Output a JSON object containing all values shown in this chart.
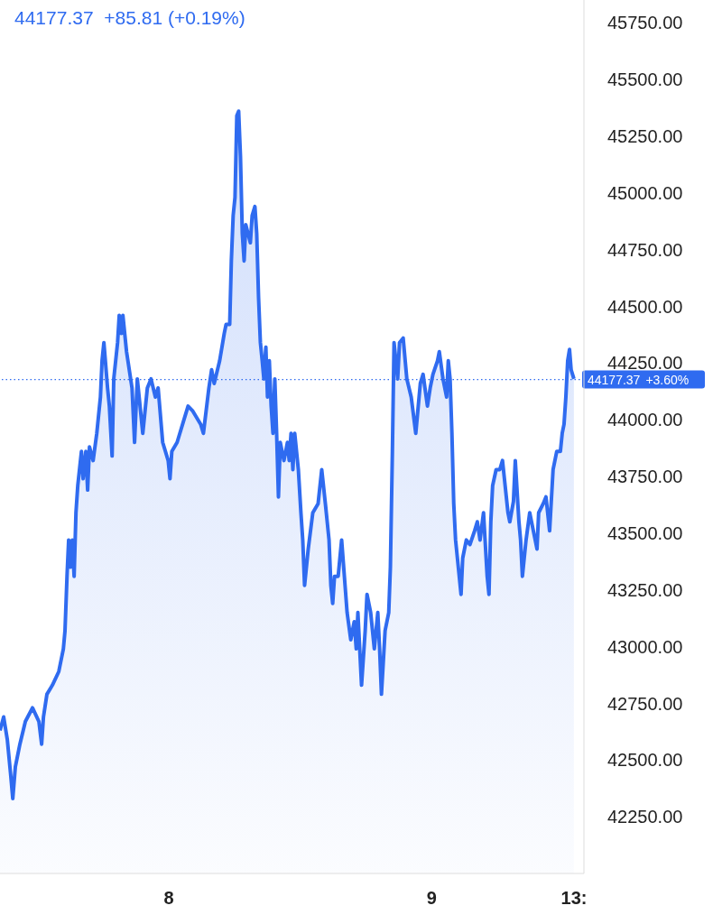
{
  "chart_data": {
    "type": "area",
    "annotations": [
      "44177.37  +85.81 (+0.19%)"
    ],
    "x": [
      "--01-07T08:36",
      "--01-07T08:56",
      "--01-07T09:16",
      "--01-07T09:35",
      "--01-07T09:46",
      "--01-07T10:00",
      "--01-07T10:25",
      "--01-07T10:55",
      "--01-07T11:34",
      "--01-07T12:09",
      "--01-07T12:24",
      "--01-07T12:34",
      "--01-07T12:53",
      "--01-07T13:23",
      "--01-07T13:58",
      "--01-07T14:23",
      "--01-07T14:32",
      "--01-07T14:43",
      "--01-07T14:52",
      "--01-07T15:02",
      "--01-07T15:12",
      "--01-07T15:22",
      "--01-07T15:32",
      "--01-07T15:42",
      "--01-07T16:02",
      "--01-07T16:11",
      "--01-07T16:26",
      "--01-07T16:36",
      "--01-07T16:46",
      "--01-07T17:06",
      "--01-07T17:26",
      "--01-07T17:46",
      "--01-07T17:55",
      "--01-07T18:05",
      "--01-07T18:25",
      "--01-07T18:35",
      "--01-07T18:50",
      "--01-07T18:59",
      "--01-07T19:20",
      "--01-07T19:29",
      "--01-07T19:40",
      "--01-07T19:49",
      "--01-07T20:09",
      "--01-07T20:39",
      "--01-07T20:53",
      "--01-07T21:08",
      "--01-07T21:38",
      "--01-07T22:03",
      "--01-07T22:23",
      "--01-07T22:47",
      "--01-07T23:02",
      "--01-07T23:27",
      "--01-07T23:57",
      "--01-08T00:07",
      "--01-08T00:17",
      "--01-08T00:46",
      "--01-08T01:16",
      "--01-08T01:46",
      "--01-08T02:10",
      "--01-08T02:55",
      "--01-08T03:10",
      "--01-08T03:40",
      "--01-08T03:55",
      "--01-08T04:09",
      "--01-08T04:39",
      "--01-08T05:04",
      "--01-08T05:14",
      "--01-08T05:34",
      "--01-08T05:43",
      "--01-08T05:53",
      "--01-08T06:03",
      "--01-08T06:13",
      "--01-08T06:23",
      "--01-08T06:33",
      "--01-08T06:43",
      "--01-08T06:53",
      "--01-08T07:02",
      "--01-08T07:27",
      "--01-08T07:37",
      "--01-08T07:52",
      "--01-08T08:02",
      "--01-08T08:12",
      "--01-08T08:22",
      "--01-08T08:32",
      "--01-08T08:41",
      "--01-08T08:52",
      "--01-08T09:01",
      "--01-08T09:11",
      "--01-08T09:21",
      "--01-08T09:31",
      "--01-08T09:41",
      "--01-08T09:51",
      "--01-08T10:01",
      "--01-08T10:11",
      "--01-08T10:31",
      "--01-08T10:50",
      "--01-08T11:00",
      "--01-08T11:10",
      "--01-08T11:20",
      "--01-08T11:30",
      "--01-08T11:50",
      "--01-08T12:04",
      "--01-08T12:14",
      "--01-08T12:24",
      "--01-08T12:44",
      "--01-08T13:09",
      "--01-08T13:38",
      "--01-08T13:58",
      "--01-08T14:18",
      "--01-08T14:38",
      "--01-08T14:48",
      "--01-08T14:58",
      "--01-08T15:08",
      "--01-08T15:28",
      "--01-08T15:47",
      "--01-08T16:17",
      "--01-08T16:37",
      "--01-08T16:56",
      "--01-08T17:07",
      "--01-08T17:16",
      "--01-08T17:36",
      "--01-08T17:56",
      "--01-08T18:06",
      "--01-08T18:26",
      "--01-08T18:46",
      "--01-08T19:05",
      "--01-08T19:15",
      "--01-08T19:25",
      "--01-08T19:45",
      "--01-08T20:05",
      "--01-08T20:14",
      "--01-08T20:25",
      "--01-08T20:34",
      "--01-08T20:54",
      "--01-08T21:04",
      "--01-08T21:24",
      "--01-08T21:44",
      "--01-08T22:08",
      "--01-08T22:33",
      "--01-08T22:58",
      "--01-08T23:13",
      "--01-08T23:37",
      "--01-08T23:52",
      "--01-09T00:07",
      "--01-09T00:32",
      "--01-09T00:42",
      "--01-09T01:02",
      "--01-09T01:22",
      "--01-09T01:31",
      "--01-09T01:41",
      "--01-09T01:51",
      "--01-09T02:01",
      "--01-09T02:11",
      "--01-09T02:31",
      "--01-09T02:41",
      "--01-09T02:50",
      "--01-09T03:10",
      "--01-09T03:30",
      "--01-09T03:55",
      "--01-09T04:10",
      "--01-09T04:25",
      "--01-09T04:44",
      "--01-09T05:04",
      "--01-09T05:14",
      "--01-09T05:24",
      "--01-09T05:34",
      "--01-09T05:53",
      "--01-09T06:13",
      "--01-09T06:28",
      "--01-09T06:58",
      "--01-09T07:08",
      "--01-09T07:28",
      "--01-09T07:38",
      "--01-09T07:58",
      "--01-09T08:07",
      "--01-09T08:17",
      "--01-09T08:37",
      "--01-09T08:57",
      "--01-09T09:17",
      "--01-09T09:37",
      "--01-09T09:46",
      "--01-09T10:11",
      "--01-09T10:26",
      "--01-09T10:46",
      "--01-09T11:05",
      "--01-09T11:25",
      "--01-09T11:45",
      "--01-09T11:55",
      "--01-09T12:05",
      "--01-09T12:15",
      "--01-09T12:25",
      "--01-09T12:35",
      "--01-09T12:44",
      "--01-09T12:59"
    ],
    "series": [
      {
        "color": "#2f6bf0",
        "values": [
          42630,
          42690,
          42590,
          42430,
          42330,
          42470,
          42570,
          42670,
          42730,
          42670,
          42570,
          42690,
          42790,
          42830,
          42890,
          42990,
          43070,
          43310,
          43470,
          43350,
          43470,
          43310,
          43590,
          43710,
          43860,
          43740,
          43860,
          43690,
          43880,
          43820,
          43940,
          44100,
          44260,
          44340,
          44140,
          44060,
          43840,
          44180,
          44340,
          44460,
          44380,
          44460,
          44300,
          44140,
          43900,
          44180,
          43940,
          44140,
          44180,
          44100,
          44140,
          43900,
          43820,
          43740,
          43860,
          43900,
          43980,
          44060,
          44040,
          43980,
          43940,
          44140,
          44220,
          44160,
          44260,
          44380,
          44420,
          44420,
          44700,
          44900,
          44980,
          45340,
          45360,
          45160,
          44820,
          44700,
          44860,
          44780,
          44900,
          44940,
          44820,
          44540,
          44340,
          44260,
          44180,
          44320,
          44100,
          44260,
          44060,
          43940,
          44180,
          43940,
          43660,
          43900,
          43820,
          43900,
          43820,
          43940,
          43780,
          43940,
          43780,
          43590,
          43470,
          43270,
          43430,
          43590,
          43630,
          43780,
          43630,
          43470,
          43270,
          43190,
          43310,
          43310,
          43470,
          43150,
          43030,
          43110,
          42990,
          43150,
          42830,
          43070,
          43230,
          43150,
          42990,
          43150,
          42990,
          42790,
          43070,
          43150,
          43350,
          43860,
          44340,
          44180,
          44340,
          44360,
          44180,
          44100,
          43940,
          44160,
          44200,
          44060,
          44140,
          44200,
          44260,
          44300,
          44180,
          44100,
          44260,
          44180,
          43940,
          43630,
          43470,
          43310,
          43230,
          43390,
          43470,
          43450,
          43510,
          43550,
          43470,
          43590,
          43310,
          43230,
          43550,
          43710,
          43780,
          43780,
          43820,
          43590,
          43550,
          43640,
          43820,
          43550,
          43470,
          43310,
          43470,
          43590,
          43510,
          43430,
          43590,
          43630,
          43660,
          43510,
          43780,
          43860,
          43860,
          43940,
          43980,
          44100,
          44260,
          44310,
          44220,
          44180
        ]
      }
    ],
    "xlim": [
      "--01-07T08:36",
      "--01-09T13:54"
    ],
    "xticks": [
      {
        "value": "--01-08",
        "label": "8"
      },
      {
        "value": "--01-09",
        "label": "9"
      },
      {
        "value": "--01-09T13:00",
        "label": "13:"
      }
    ],
    "ylim": [
      42000,
      45850
    ],
    "yticks": [
      {
        "value": 42250,
        "label": "42250.00"
      },
      {
        "value": 42500,
        "label": "42500.00"
      },
      {
        "value": 42750,
        "label": "42750.00"
      },
      {
        "value": 43000,
        "label": "43000.00"
      },
      {
        "value": 43250,
        "label": "43250.00"
      },
      {
        "value": 43500,
        "label": "43500.00"
      },
      {
        "value": 43750,
        "label": "43750.00"
      },
      {
        "value": 44000,
        "label": "44000.00"
      },
      {
        "value": 44250,
        "label": "44250.00"
      },
      {
        "value": 44500,
        "label": "44500.00"
      },
      {
        "value": 44750,
        "label": "44750.00"
      },
      {
        "value": 45000,
        "label": "45000.00"
      },
      {
        "value": 45250,
        "label": "45250.00"
      },
      {
        "value": 45500,
        "label": "45500.00"
      },
      {
        "value": 45750,
        "label": "45750.00"
      }
    ],
    "ref_lines": [
      {
        "axis": "y",
        "value": 44177.37,
        "label": "44177.37\n+3.60%",
        "color": "#2f6bf0",
        "line_style": "dotted"
      }
    ],
    "grid": false,
    "legend": false,
    "marker": "none",
    "line_style": "solid"
  }
}
